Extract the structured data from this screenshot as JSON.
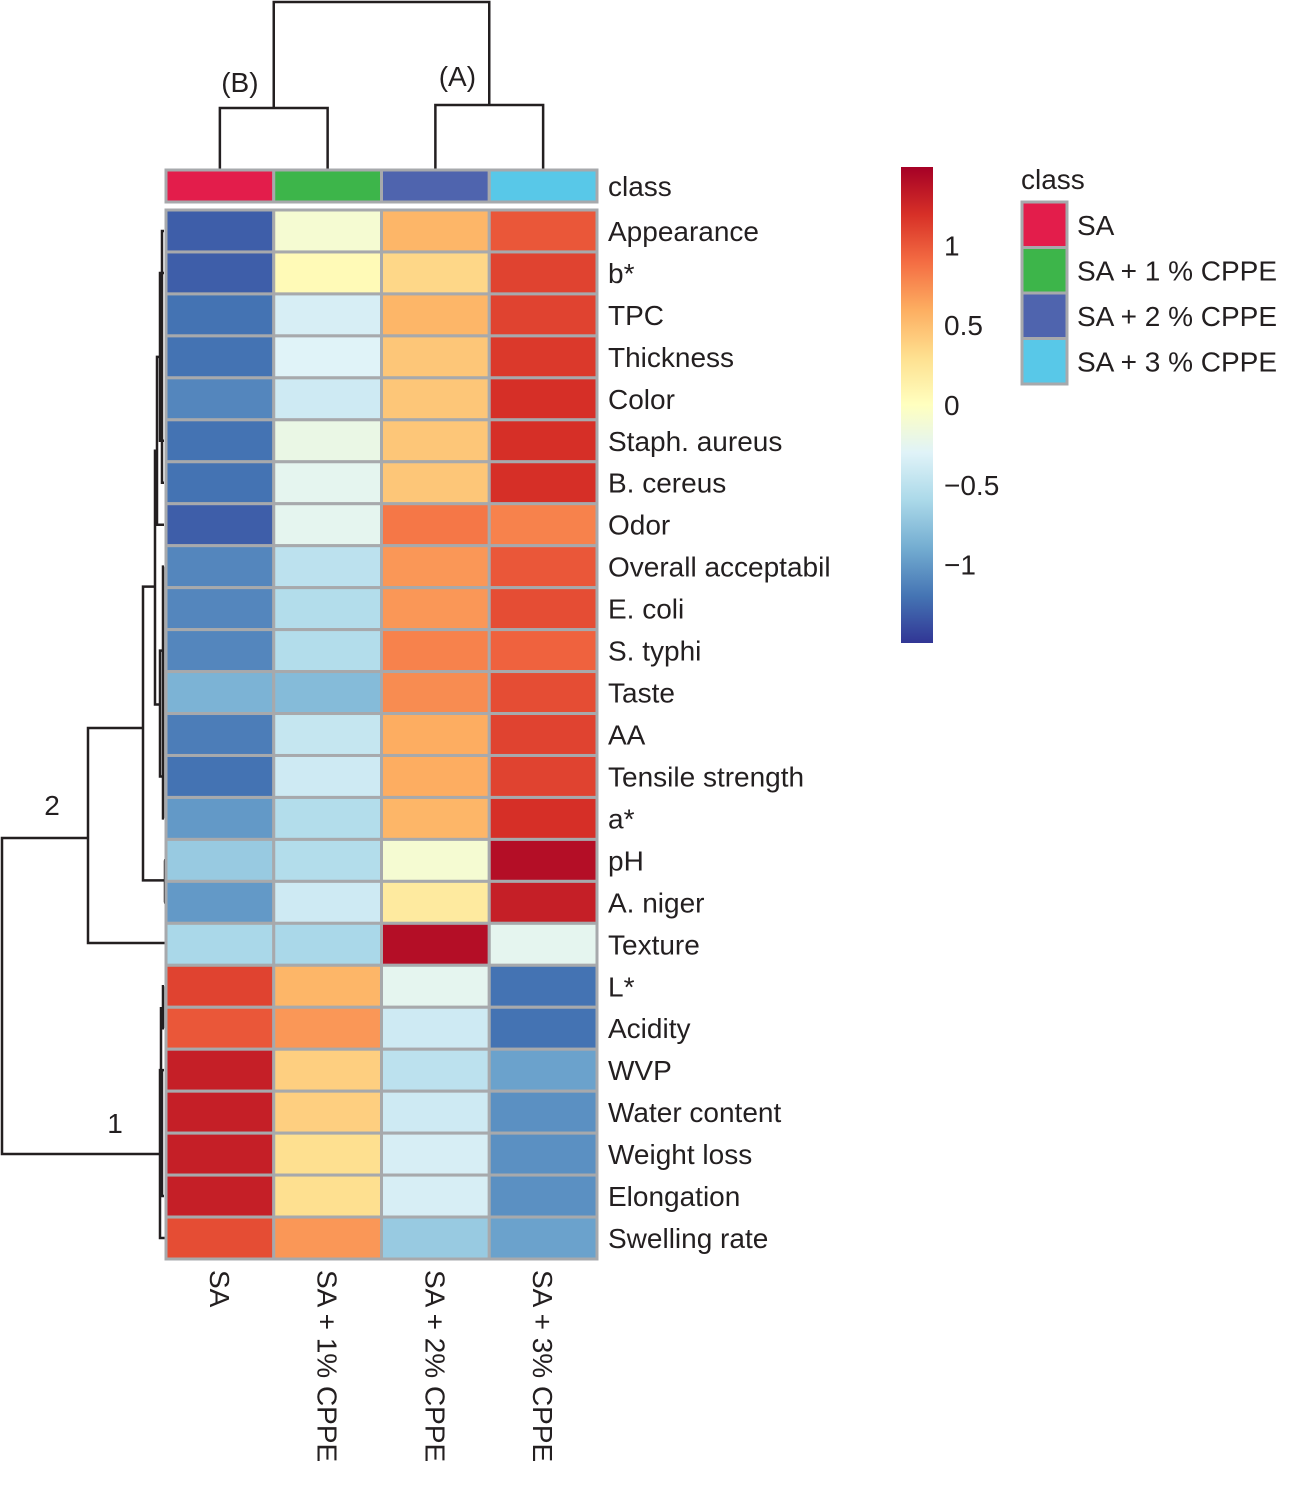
{
  "chart_data": {
    "type": "heatmap",
    "title": "",
    "columns": [
      "SA",
      "SA + 1% CPPE",
      "SA + 2% CPPE",
      "SA + 3% CPPE"
    ],
    "rows": [
      "Appearance",
      "b*",
      "TPC",
      "Thickness",
      "Color",
      "Staph. aureus",
      "B. cereus",
      "Odor",
      "Overall acceptabil",
      "E. coli",
      "S. typhi",
      "Taste",
      "AA",
      "Tensile strength",
      "a*",
      "pH",
      "A. niger",
      "Texture",
      "L*",
      "Acidity",
      "WVP",
      "Water content",
      "Weight loss",
      "Elongation",
      "Swelling rate"
    ],
    "values": [
      [
        -1.3,
        -0.1,
        0.55,
        1.0
      ],
      [
        -1.3,
        0.05,
        0.35,
        1.1
      ],
      [
        -1.2,
        -0.35,
        0.55,
        1.1
      ],
      [
        -1.2,
        -0.3,
        0.45,
        1.15
      ],
      [
        -1.1,
        -0.4,
        0.45,
        1.2
      ],
      [
        -1.2,
        -0.2,
        0.45,
        1.2
      ],
      [
        -1.2,
        -0.25,
        0.45,
        1.2
      ],
      [
        -1.3,
        -0.25,
        0.85,
        0.8
      ],
      [
        -1.1,
        -0.5,
        0.7,
        1.0
      ],
      [
        -1.1,
        -0.55,
        0.7,
        1.05
      ],
      [
        -1.1,
        -0.55,
        0.8,
        0.95
      ],
      [
        -0.85,
        -0.8,
        0.75,
        1.05
      ],
      [
        -1.15,
        -0.45,
        0.6,
        1.1
      ],
      [
        -1.2,
        -0.4,
        0.6,
        1.1
      ],
      [
        -1.0,
        -0.55,
        0.55,
        1.2
      ],
      [
        -0.7,
        -0.55,
        -0.1,
        1.4
      ],
      [
        -1.0,
        -0.4,
        0.2,
        1.3
      ],
      [
        -0.6,
        -0.6,
        1.4,
        -0.25
      ],
      [
        1.1,
        0.55,
        -0.25,
        -1.2
      ],
      [
        1.0,
        0.7,
        -0.4,
        -1.2
      ],
      [
        1.3,
        0.4,
        -0.5,
        -0.95
      ],
      [
        1.3,
        0.4,
        -0.4,
        -1.05
      ],
      [
        1.3,
        0.3,
        -0.35,
        -1.05
      ],
      [
        1.3,
        0.3,
        -0.35,
        -1.05
      ],
      [
        1.05,
        0.7,
        -0.7,
        -0.95
      ]
    ],
    "colorscale": {
      "range": [
        -1.49,
        1.49
      ],
      "ticks": [
        1,
        0.5,
        0,
        -0.5,
        -1
      ],
      "tick_labels": [
        "1",
        "0.5",
        "0",
        "−0.5",
        "−1"
      ],
      "stops": [
        "#313695",
        "#4575b4",
        "#74add1",
        "#abd9e9",
        "#e0f3f8",
        "#ffffbf",
        "#fee090",
        "#fdae61",
        "#f46d43",
        "#d73027",
        "#a50026"
      ]
    },
    "annotation": {
      "row_label": "class",
      "legend_title": "class",
      "levels": [
        "SA",
        "SA + 1 % CPPE",
        "SA + 2 % CPPE",
        "SA + 3 % CPPE"
      ],
      "colors": [
        "#e31d4b",
        "#3db54a",
        "#4f64ae",
        "#58c8e8"
      ]
    },
    "column_dendrogram": {
      "clusters": [
        {
          "label": "(B)",
          "members": [
            "SA",
            "SA + 1% CPPE"
          ]
        },
        {
          "label": "(A)",
          "members": [
            "SA + 2% CPPE",
            "SA + 3% CPPE"
          ]
        }
      ]
    },
    "row_dendrogram": {
      "clusters": [
        {
          "label": "2",
          "members": [
            "Appearance",
            "b*",
            "TPC",
            "Thickness",
            "Color",
            "Staph. aureus",
            "B. cereus",
            "Odor",
            "Overall acceptabil",
            "E. coli",
            "S. typhi",
            "Taste",
            "AA",
            "Tensile strength",
            "a*",
            "pH",
            "A. niger",
            "Texture"
          ]
        },
        {
          "label": "1",
          "members": [
            "L*",
            "Acidity",
            "WVP",
            "Water content",
            "Weight loss",
            "Elongation",
            "Swelling rate"
          ]
        }
      ]
    },
    "grid": true,
    "legend_placement": "right"
  }
}
